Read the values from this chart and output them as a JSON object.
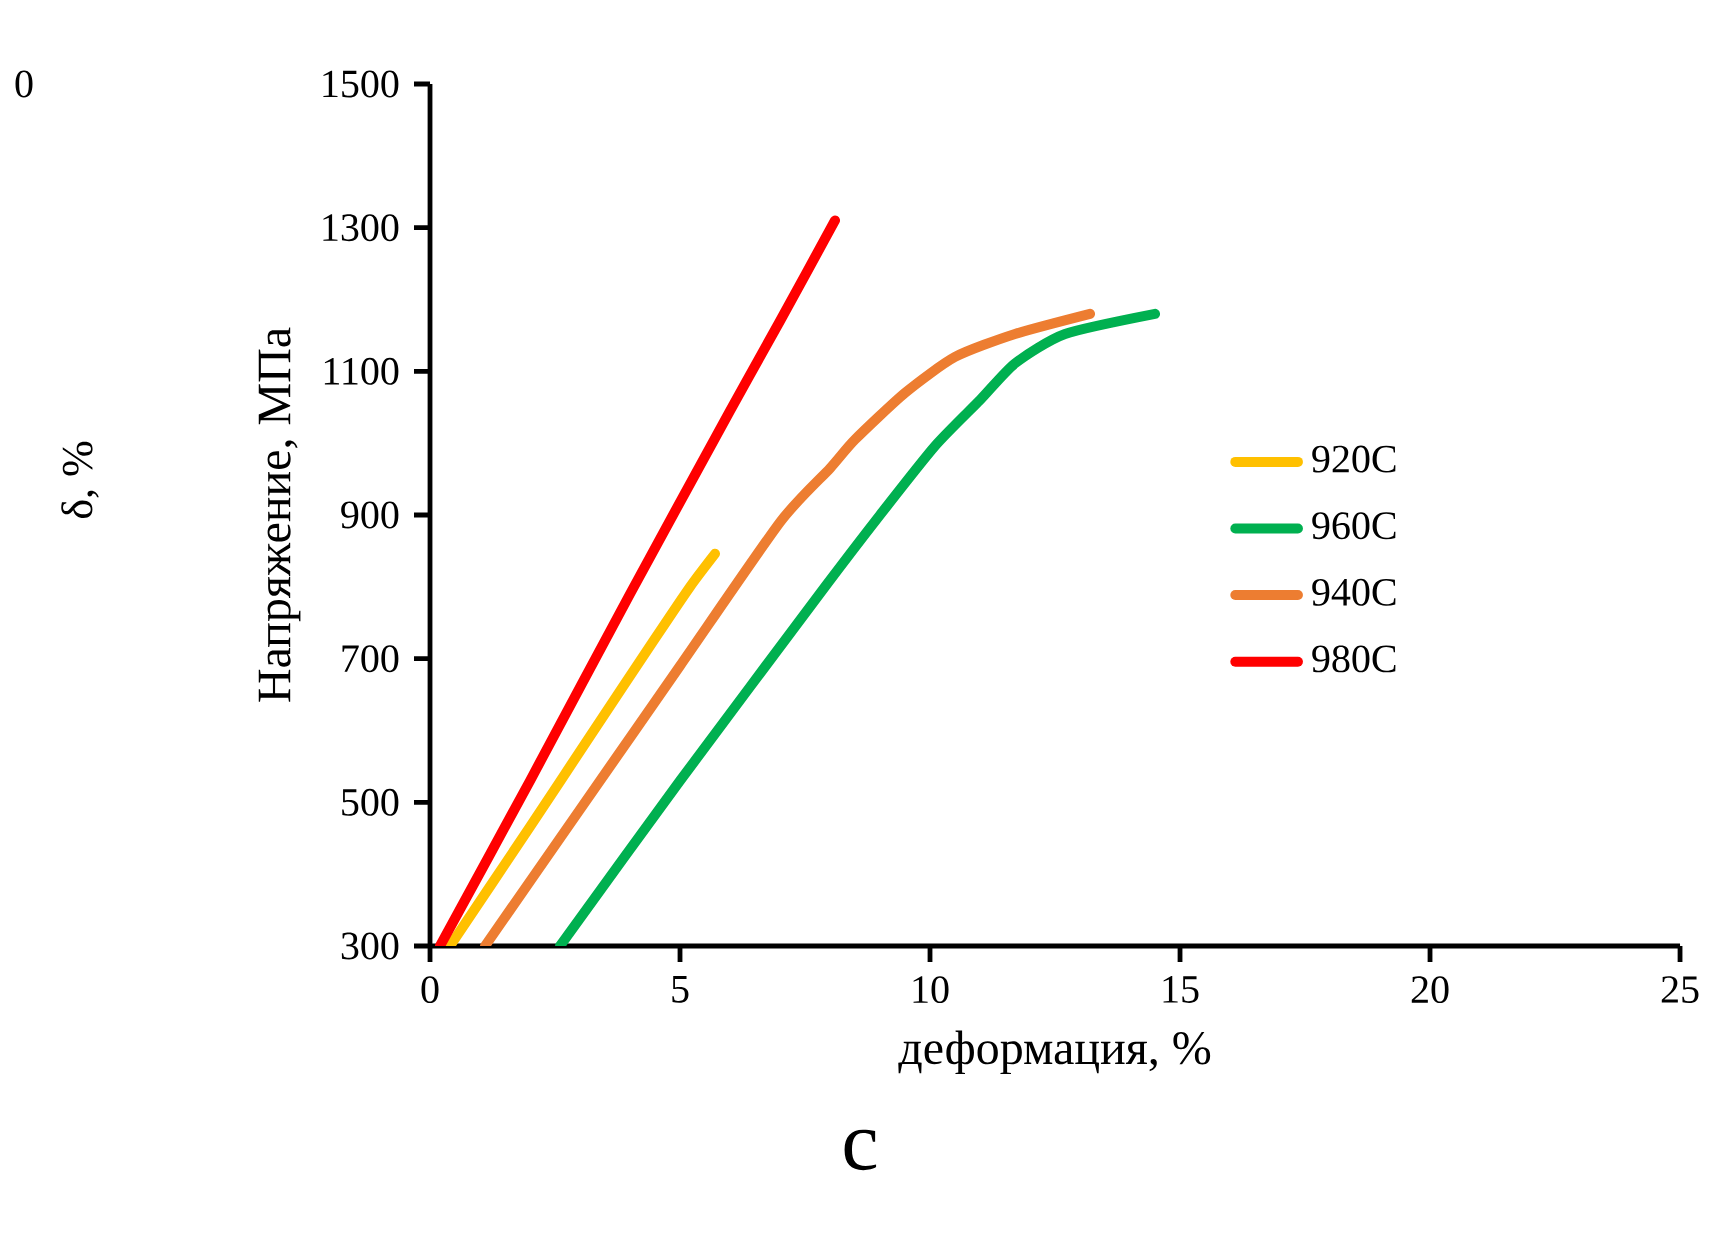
{
  "chart_data": {
    "type": "line",
    "xlabel": "деформация, %",
    "ylabel": "Напряжение, МПа",
    "xlim": [
      0,
      25
    ],
    "ylim": [
      300,
      1500
    ],
    "xticks": [
      0,
      5,
      10,
      15,
      20,
      25
    ],
    "yticks": [
      300,
      500,
      700,
      900,
      1100,
      1300,
      1500
    ],
    "legend": "right",
    "grid": false,
    "marker": "none",
    "line_style": "solid",
    "annotations": [
      "0",
      "δ, %",
      "c"
    ],
    "series": [
      {
        "name": "920C",
        "color": "#ffc000",
        "x": [
          0.4,
          2,
          3.2,
          4.5,
          5.2,
          5.7
        ],
        "values": [
          300,
          466,
          592,
          728,
          800,
          846
        ]
      },
      {
        "name": "960C",
        "color": "#00b050",
        "x": [
          2.6,
          5,
          7.9,
          9,
          10.1,
          11,
          11.7,
          12.7,
          14.5
        ],
        "values": [
          300,
          530,
          800,
          900,
          996,
          1060,
          1111,
          1152,
          1180
        ]
      },
      {
        "name": "940C",
        "color": "#ed7d31",
        "x": [
          1.1,
          3,
          5,
          7,
          8,
          8.5,
          9.5,
          10.5,
          11.7,
          13.2
        ],
        "values": [
          300,
          490,
          690,
          890,
          965,
          1005,
          1070,
          1120,
          1152,
          1180
        ]
      },
      {
        "name": "980C",
        "color": "#ff0000",
        "x": [
          0.2,
          2,
          4,
          6,
          7,
          8.1
        ],
        "values": [
          300,
          530,
          790,
          1045,
          1170,
          1310
        ]
      }
    ]
  }
}
